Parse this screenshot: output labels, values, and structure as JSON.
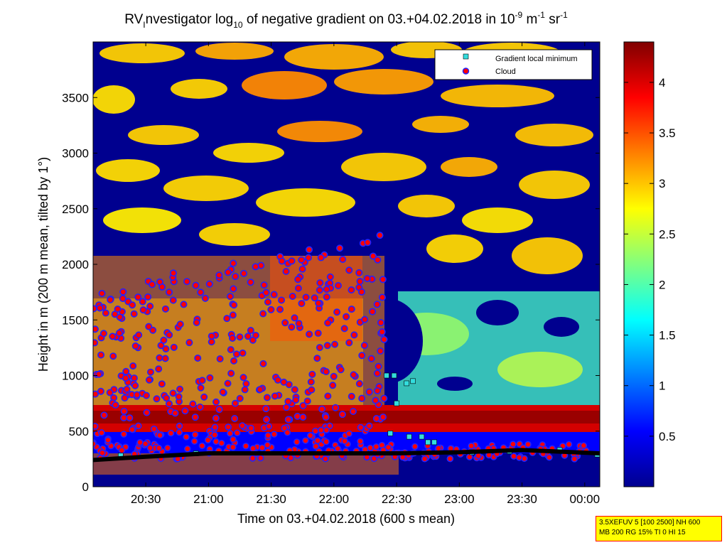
{
  "chart_data": {
    "type": "heatmap",
    "title": {
      "prefix": "RV",
      "prefix_sub": "I",
      "main": "nvestigator log",
      "main_sub": "10",
      "rest": " of negative gradient on 03.+04.02.2018 in 10",
      "unit_sup1": "-9",
      "unit_mid": " m",
      "unit_sup2": "-1",
      "unit_end": " sr",
      "unit_sup3": "-1"
    },
    "xlabel": "Time on 03.+04.02.2018 (600 s mean)",
    "ylabel": "Height in m (200 m mean, tilted by 1°)",
    "x_range_hours": [
      20.08,
      24.12
    ],
    "ylim": [
      0,
      4000
    ],
    "x_ticks": [
      {
        "label": "20:30",
        "value": 20.5
      },
      {
        "label": "21:00",
        "value": 21.0
      },
      {
        "label": "21:30",
        "value": 21.5
      },
      {
        "label": "22:00",
        "value": 22.0
      },
      {
        "label": "22:30",
        "value": 22.5
      },
      {
        "label": "23:00",
        "value": 23.0
      },
      {
        "label": "23:30",
        "value": 23.5
      },
      {
        "label": "00:00",
        "value": 24.0
      }
    ],
    "y_ticks": [
      0,
      500,
      1000,
      1500,
      2000,
      2500,
      3000,
      3500
    ],
    "colorbar": {
      "range": [
        0,
        4.4
      ],
      "ticks": [
        "0.5",
        "1",
        "1.5",
        "2",
        "2.5",
        "3",
        "3.5",
        "4"
      ],
      "tick_values": [
        0.5,
        1,
        1.5,
        2,
        2.5,
        3,
        3.5,
        4
      ],
      "colormap": "jet"
    },
    "legend": {
      "position": "top-right",
      "entries": [
        {
          "label": "Gradient local minimum",
          "marker": "square",
          "color": "#33dddd"
        },
        {
          "label": "Cloud",
          "marker": "circle",
          "color": "#ff0000",
          "edge": "#2222ff"
        }
      ]
    },
    "boundary_layer_line": {
      "color": "#000000",
      "points": [
        [
          20.08,
          240
        ],
        [
          20.5,
          270
        ],
        [
          21.0,
          300
        ],
        [
          21.5,
          300
        ],
        [
          22.0,
          300
        ],
        [
          22.5,
          300
        ],
        [
          23.0,
          310
        ],
        [
          23.5,
          330
        ],
        [
          24.12,
          300
        ]
      ]
    },
    "gradient_local_minimum": [
      [
        22.42,
        1000
      ],
      [
        22.48,
        1000
      ],
      [
        22.58,
        930
      ],
      [
        22.63,
        950
      ],
      [
        22.5,
        750
      ],
      [
        22.6,
        450
      ],
      [
        22.7,
        450
      ],
      [
        22.8,
        400
      ],
      [
        22.45,
        480
      ],
      [
        22.75,
        400
      ],
      [
        23.1,
        310
      ],
      [
        23.4,
        320
      ],
      [
        23.8,
        330
      ],
      [
        24.1,
        290
      ],
      [
        20.3,
        280
      ],
      [
        20.9,
        300
      ]
    ],
    "cloud_summary": {
      "low_layer_heights_m": [
        250,
        550
      ],
      "high_scatter_time_range": [
        "20:05",
        "22:25"
      ],
      "high_scatter_height_range_m": [
        600,
        2300
      ]
    }
  },
  "info_box": {
    "line1": "3.5XEFUV 5 [100 2500] NH 600",
    "line2": "MB 200 RG 15% TI 0 HI 15"
  }
}
